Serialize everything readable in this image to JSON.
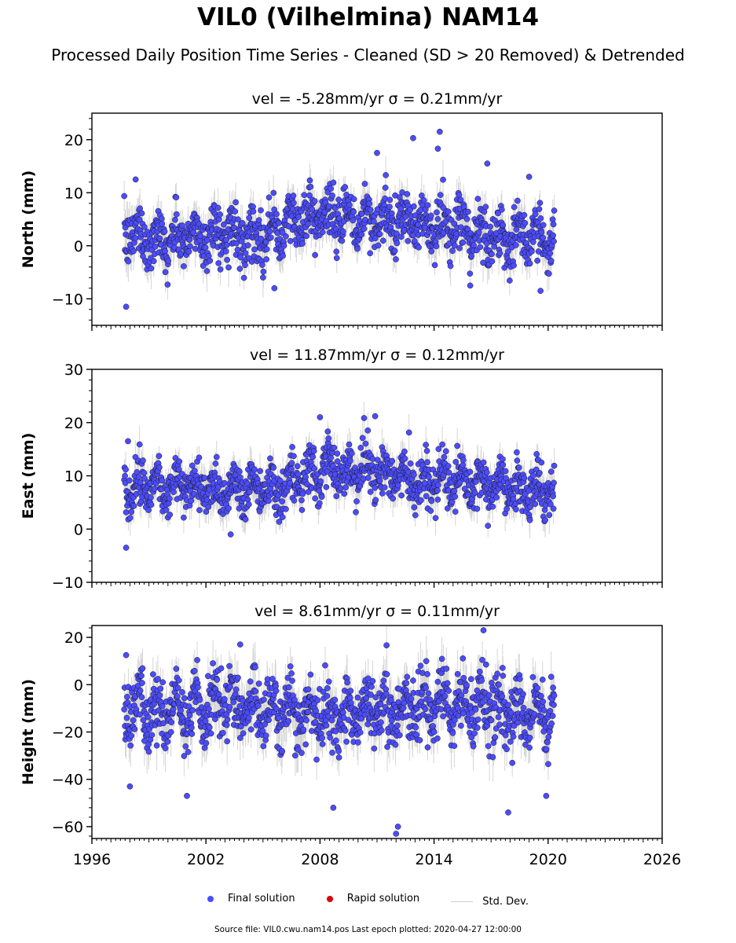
{
  "figure": {
    "title": "VIL0 (Vilhelmina) NAM14",
    "subtitle": "Processed Daily Position Time Series - Cleaned (SD > 20 Removed) & Detrended",
    "footer": "Source file: VIL0.cwu.nam14.pos  Last epoch plotted: 2020-04-27 12:00:00",
    "colors": {
      "final": "#4c4cff",
      "rapid": "#e00000",
      "stddev": "#c8c8c8",
      "edge": "#1a1a1a"
    }
  },
  "legend": {
    "placement": "bottom-center",
    "final_label": "Final solution",
    "rapid_label": "Rapid solution",
    "stddev_label": "Std. Dev."
  },
  "chart_data": [
    {
      "type": "scatter",
      "title": "vel = -5.28mm/yr   σ = 0.21mm/yr",
      "ylabel": "North (mm)",
      "xlim": [
        1996,
        2026
      ],
      "ylim": [
        -15,
        25
      ],
      "yticks": [
        -10,
        0,
        10,
        20
      ],
      "ytick_labels": [
        "−10",
        "0",
        "10",
        "20"
      ],
      "data_range": [
        1997.7,
        2020.32
      ],
      "series": [
        {
          "x": [
            1998.0,
            1999.0,
            2000.0,
            2001.0,
            2002.0,
            2003.0,
            2004.0,
            2005.0,
            2006.0,
            2007.0,
            2008.0,
            2009.0,
            2010.0,
            2011.0,
            2012.0,
            2013.0,
            2014.0,
            2015.0,
            2016.0,
            2017.0,
            2018.0,
            2019.0,
            2020.0
          ],
          "values": [
            2.5,
            1.5,
            1.0,
            1.5,
            2.0,
            2.5,
            2.0,
            2.0,
            3.0,
            5.5,
            6.0,
            5.0,
            4.5,
            5.0,
            4.0,
            4.5,
            3.5,
            3.0,
            2.5,
            2.0,
            1.5,
            1.5,
            1.5
          ]
        }
      ],
      "outliers": [
        [
          1997.8,
          -11.5
        ],
        [
          1998.3,
          12.5
        ],
        [
          2005.6,
          -8.0
        ],
        [
          2011.0,
          17.5
        ],
        [
          2012.9,
          20.3
        ],
        [
          2014.2,
          18.3
        ],
        [
          2014.3,
          21.5
        ],
        [
          2016.8,
          15.5
        ],
        [
          2015.9,
          -7.5
        ],
        [
          2019.6,
          -8.5
        ],
        [
          2019.0,
          13.0
        ]
      ]
    },
    {
      "type": "scatter",
      "title": "vel = 11.87mm/yr   σ = 0.12mm/yr",
      "ylabel": "East (mm)",
      "xlim": [
        1996,
        2026
      ],
      "ylim": [
        -10,
        30
      ],
      "yticks": [
        -10,
        0,
        10,
        20,
        30
      ],
      "ytick_labels": [
        "−10",
        "0",
        "10",
        "20",
        "30"
      ],
      "data_range": [
        1997.7,
        2020.32
      ],
      "series": [
        {
          "x": [
            1998.0,
            1999.0,
            2000.0,
            2001.0,
            2002.0,
            2003.0,
            2004.0,
            2005.0,
            2006.0,
            2007.0,
            2008.0,
            2009.0,
            2010.0,
            2011.0,
            2012.0,
            2013.0,
            2014.0,
            2015.0,
            2016.0,
            2017.0,
            2018.0,
            2019.0,
            2020.0
          ],
          "values": [
            8.5,
            8.5,
            8.0,
            8.0,
            8.0,
            7.5,
            8.0,
            8.0,
            7.5,
            9.0,
            11.0,
            11.5,
            10.5,
            11.0,
            10.0,
            9.0,
            8.5,
            9.0,
            8.5,
            8.0,
            7.5,
            7.0,
            8.0
          ]
        }
      ],
      "outliers": [
        [
          1997.8,
          -3.5
        ],
        [
          1997.9,
          16.5
        ],
        [
          2008.0,
          21.0
        ],
        [
          2010.9,
          21.2
        ],
        [
          2003.3,
          -1.0
        ]
      ]
    },
    {
      "type": "scatter",
      "title": "vel = 8.61mm/yr   σ = 0.11mm/yr",
      "ylabel": "Height (mm)",
      "xlim": [
        1996,
        2026
      ],
      "ylim": [
        -65,
        25
      ],
      "yticks": [
        -60,
        -40,
        -20,
        0,
        20
      ],
      "ytick_labels": [
        "−60",
        "−40",
        "−20",
        "0",
        "20"
      ],
      "xticks": [
        1996,
        2002,
        2008,
        2014,
        2020,
        2026
      ],
      "xtick_labels": [
        "1996",
        "2002",
        "2008",
        "2014",
        "2020",
        "2026"
      ],
      "data_range": [
        1997.7,
        2020.32
      ],
      "series": [
        {
          "x": [
            1998.0,
            1999.0,
            2000.0,
            2001.0,
            2002.0,
            2003.0,
            2004.0,
            2005.0,
            2006.0,
            2007.0,
            2008.0,
            2009.0,
            2010.0,
            2011.0,
            2012.0,
            2013.0,
            2014.0,
            2015.0,
            2016.0,
            2017.0,
            2018.0,
            2019.0,
            2020.0
          ],
          "values": [
            -10.0,
            -12.0,
            -11.0,
            -12.0,
            -10.0,
            -8.0,
            -9.0,
            -10.0,
            -11.0,
            -12.0,
            -12.0,
            -13.0,
            -11.0,
            -10.0,
            -12.0,
            -8.0,
            -9.0,
            -9.0,
            -8.0,
            -10.0,
            -13.0,
            -12.0,
            -11.0
          ]
        }
      ],
      "outliers": [
        [
          1998.0,
          -43.0
        ],
        [
          2001.0,
          -47.0
        ],
        [
          2008.7,
          -52.0
        ],
        [
          2012.0,
          -63.0
        ],
        [
          2012.1,
          -60.0
        ],
        [
          2016.6,
          23.0
        ],
        [
          2017.9,
          -54.0
        ],
        [
          2019.9,
          -47.0
        ],
        [
          2003.8,
          17.0
        ],
        [
          1997.8,
          12.5
        ]
      ]
    }
  ]
}
